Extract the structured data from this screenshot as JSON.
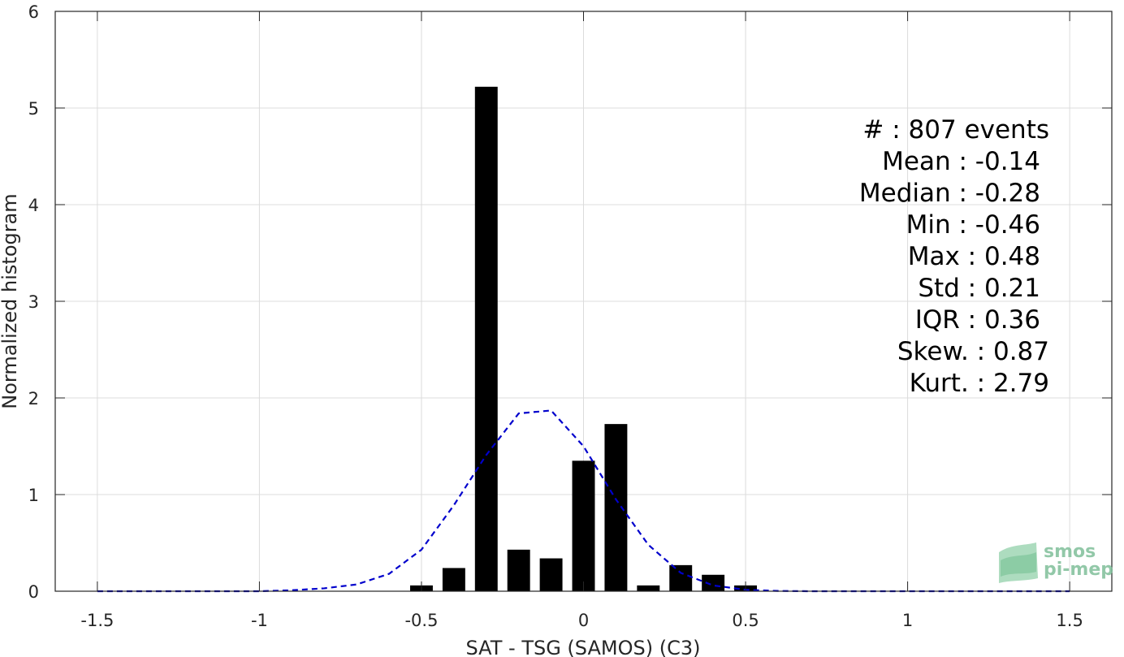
{
  "chart_data": {
    "type": "bar",
    "xlabel": "SAT - TSG (SAMOS) (C3)",
    "ylabel": "Normalized histogram",
    "xlim": [
      -1.63,
      1.63
    ],
    "ylim": [
      0,
      6
    ],
    "xticks": [
      -1.5,
      -1,
      -0.5,
      0,
      0.5,
      1,
      1.5
    ],
    "xtick_labels": [
      "-1.5",
      "-1",
      "-0.5",
      "0",
      "0.5",
      "1",
      "1.5"
    ],
    "yticks": [
      0,
      1,
      2,
      3,
      4,
      5,
      6
    ],
    "ytick_labels": [
      "0",
      "1",
      "2",
      "3",
      "4",
      "5",
      "6"
    ],
    "grid": true,
    "bar_width": 0.07,
    "bars": {
      "x": [
        -0.5,
        -0.4,
        -0.3,
        -0.2,
        -0.1,
        0.0,
        0.1,
        0.2,
        0.3,
        0.4,
        0.5
      ],
      "values": [
        0.06,
        0.24,
        5.22,
        0.43,
        0.34,
        1.35,
        1.73,
        0.06,
        0.27,
        0.17,
        0.06
      ],
      "color": "#000000"
    },
    "fit_line": {
      "style": "dashed",
      "color": "#0000cc",
      "x": [
        -1.5,
        -1.4,
        -1.3,
        -1.2,
        -1.1,
        -1.0,
        -0.9,
        -0.8,
        -0.7,
        -0.6,
        -0.5,
        -0.4,
        -0.3,
        -0.2,
        -0.1,
        0.0,
        0.1,
        0.2,
        0.3,
        0.4,
        0.5,
        0.6,
        0.7,
        0.8,
        0.9,
        1.0,
        1.1,
        1.2,
        1.3,
        1.4,
        1.5
      ],
      "y": [
        0.0,
        0.0,
        0.0,
        0.0,
        0.0,
        0.0,
        0.01,
        0.03,
        0.07,
        0.18,
        0.43,
        0.89,
        1.41,
        1.84,
        1.87,
        1.5,
        0.95,
        0.48,
        0.19,
        0.06,
        0.015,
        0.003,
        0.0,
        0.0,
        0.0,
        0.0,
        0.0,
        0.0,
        0.0,
        0.0,
        0.0
      ]
    },
    "stats": [
      "#  : 807 events",
      "Mean : -0.14",
      "Median : -0.28",
      "Min : -0.46",
      "Max : 0.48",
      "Std : 0.21",
      "IQR : 0.36",
      "Skew. : 0.87",
      "Kurt. : 2.79"
    ]
  },
  "logo": {
    "line1": "smos",
    "line2": "pi-mep"
  }
}
